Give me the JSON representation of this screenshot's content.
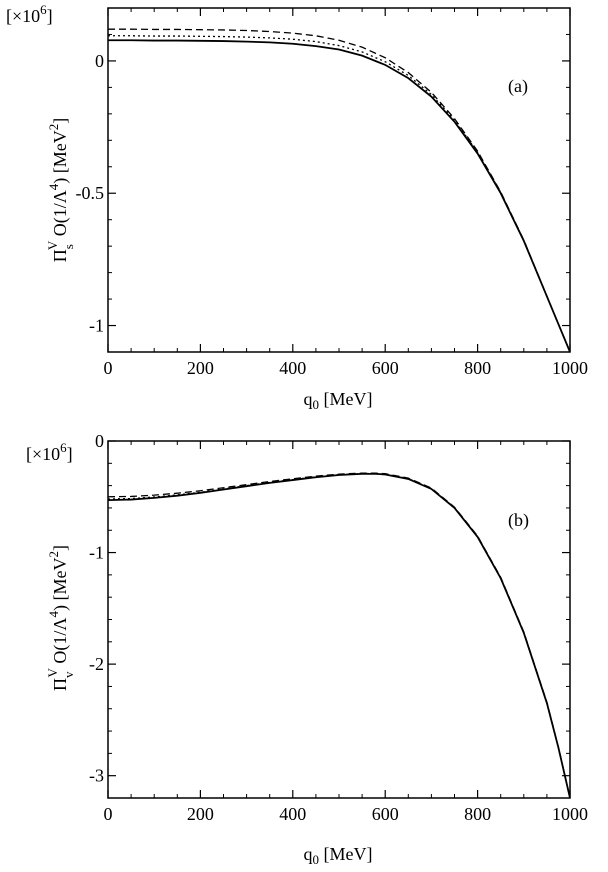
{
  "chart_data": [
    {
      "type": "line",
      "panel_label": "(a)",
      "exponent_label": "[×10",
      "exponent_power": "6",
      "xlabel_main": "q",
      "xlabel_sub": "0",
      "xlabel_unit": " [MeV]",
      "ylabel_parts": {
        "pi": "Π",
        "sub": "s",
        "sup": "V",
        "order": " O(1/Λ",
        "order_sup": "4",
        "unit": ") [MeV",
        "unit_sup": "2",
        "close": "]"
      },
      "xlim": [
        0,
        1000
      ],
      "ylim": [
        -1.1,
        0.2
      ],
      "xticks": [
        0,
        200,
        400,
        600,
        800,
        1000
      ],
      "xtick_labels": [
        "0",
        "200",
        "400",
        "600",
        "800",
        "1000"
      ],
      "yticks": [
        0,
        -0.5,
        -1
      ],
      "ytick_labels": [
        "0",
        "-0.5",
        "-1"
      ],
      "series": [
        {
          "style": "solid",
          "x": [
            0,
            50,
            100,
            150,
            200,
            250,
            300,
            350,
            400,
            450,
            500,
            550,
            600,
            650,
            700,
            750,
            800,
            850,
            900,
            950,
            1000
          ],
          "y": [
            0.078,
            0.078,
            0.077,
            0.077,
            0.076,
            0.075,
            0.073,
            0.07,
            0.065,
            0.056,
            0.043,
            0.02,
            -0.015,
            -0.065,
            -0.135,
            -0.23,
            -0.35,
            -0.5,
            -0.68,
            -0.89,
            -1.1
          ]
        },
        {
          "style": "dotted",
          "x": [
            0,
            50,
            100,
            150,
            200,
            250,
            300,
            350,
            400,
            450,
            500,
            550,
            600,
            650,
            700,
            750,
            800,
            850,
            900,
            950,
            1000
          ],
          "y": [
            0.095,
            0.095,
            0.094,
            0.094,
            0.093,
            0.092,
            0.09,
            0.087,
            0.082,
            0.073,
            0.058,
            0.034,
            -0.003,
            -0.055,
            -0.127,
            -0.224,
            -0.345,
            -0.497,
            -0.678,
            -0.889,
            -1.1
          ]
        },
        {
          "style": "dashed",
          "x": [
            0,
            50,
            100,
            150,
            200,
            250,
            300,
            350,
            400,
            450,
            500,
            550,
            600,
            650,
            700,
            750,
            800,
            850,
            900,
            950,
            1000
          ],
          "y": [
            0.12,
            0.12,
            0.119,
            0.119,
            0.118,
            0.117,
            0.115,
            0.111,
            0.105,
            0.095,
            0.078,
            0.052,
            0.012,
            -0.044,
            -0.119,
            -0.218,
            -0.341,
            -0.495,
            -0.677,
            -0.889,
            -1.1
          ]
        }
      ]
    },
    {
      "type": "line",
      "panel_label": "(b)",
      "exponent_label": "[×10",
      "exponent_power": "6",
      "xlabel_main": "q",
      "xlabel_sub": "0",
      "xlabel_unit": " [MeV]",
      "ylabel_parts": {
        "pi": "Π",
        "sub": "v",
        "sup": "V",
        "order": " O(1/Λ",
        "order_sup": "4",
        "unit": ") [MeV",
        "unit_sup": "2",
        "close": "]"
      },
      "xlim": [
        0,
        1000
      ],
      "ylim": [
        -3.2,
        0
      ],
      "xticks": [
        0,
        200,
        400,
        600,
        800,
        1000
      ],
      "xtick_labels": [
        "0",
        "200",
        "400",
        "600",
        "800",
        "1000"
      ],
      "yticks": [
        0,
        -1,
        -2,
        -3
      ],
      "ytick_labels": [
        "0",
        "-1",
        "-2",
        "-3"
      ],
      "series": [
        {
          "style": "solid",
          "x": [
            0,
            50,
            100,
            150,
            200,
            250,
            300,
            350,
            400,
            450,
            500,
            550,
            580,
            600,
            650,
            700,
            750,
            800,
            850,
            900,
            950,
            975,
            1000
          ],
          "y": [
            -0.53,
            -0.525,
            -0.51,
            -0.49,
            -0.465,
            -0.435,
            -0.405,
            -0.375,
            -0.35,
            -0.325,
            -0.305,
            -0.295,
            -0.295,
            -0.3,
            -0.34,
            -0.43,
            -0.6,
            -0.86,
            -1.23,
            -1.72,
            -2.35,
            -2.75,
            -3.2
          ]
        },
        {
          "style": "dotted",
          "x": [
            0,
            50,
            100,
            150,
            200,
            250,
            300,
            350,
            400,
            450,
            500,
            550,
            580,
            600,
            650,
            700,
            750,
            800,
            850,
            900,
            950,
            975,
            1000
          ],
          "y": [
            -0.52,
            -0.516,
            -0.502,
            -0.483,
            -0.459,
            -0.43,
            -0.4,
            -0.371,
            -0.346,
            -0.321,
            -0.302,
            -0.292,
            -0.292,
            -0.297,
            -0.337,
            -0.427,
            -0.598,
            -0.858,
            -1.228,
            -1.718,
            -2.348,
            -2.75,
            -3.2
          ]
        },
        {
          "style": "dashed",
          "x": [
            0,
            50,
            100,
            150,
            200,
            250,
            300,
            350,
            400,
            450,
            500,
            550,
            580,
            600,
            650,
            700,
            750,
            800,
            850,
            900,
            950,
            975,
            1000
          ],
          "y": [
            -0.5,
            -0.497,
            -0.485,
            -0.468,
            -0.446,
            -0.419,
            -0.391,
            -0.363,
            -0.339,
            -0.315,
            -0.297,
            -0.288,
            -0.288,
            -0.293,
            -0.333,
            -0.422,
            -0.593,
            -0.852,
            -1.222,
            -1.712,
            -2.343,
            -2.747,
            -3.2
          ]
        }
      ]
    }
  ]
}
